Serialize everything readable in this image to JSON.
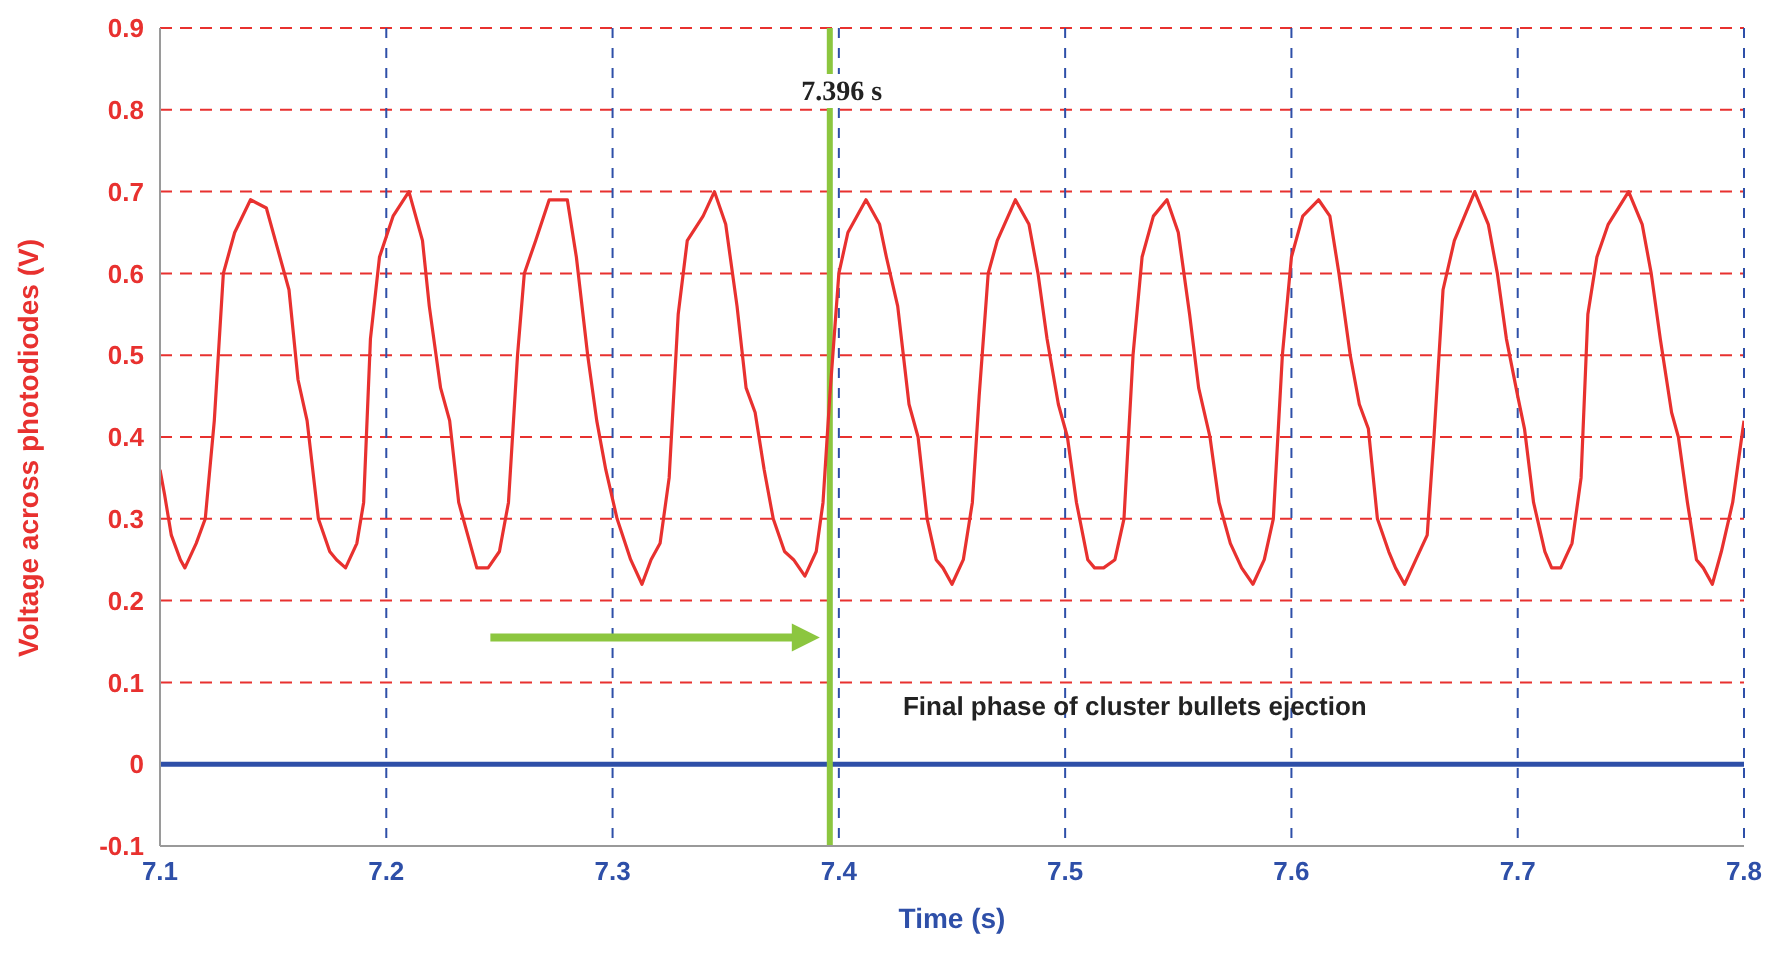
{
  "chart_data": {
    "type": "line",
    "xlabel": "Time (s)",
    "ylabel": "Voltage across photodiodes (V)",
    "series": [
      {
        "color": "#e8312f",
        "x": [
          7.1,
          7.102,
          7.105,
          7.109,
          7.111,
          7.116,
          7.12,
          7.124,
          7.128,
          7.133,
          7.14,
          7.147,
          7.152,
          7.157,
          7.161,
          7.165,
          7.17,
          7.175,
          7.178,
          7.182,
          7.187,
          7.19,
          7.193,
          7.197,
          7.203,
          7.21,
          7.216,
          7.219,
          7.224,
          7.228,
          7.232,
          7.236,
          7.24,
          7.245,
          7.25,
          7.254,
          7.258,
          7.261,
          7.266,
          7.272,
          7.28,
          7.284,
          7.289,
          7.293,
          7.297,
          7.302,
          7.308,
          7.313,
          7.317,
          7.321,
          7.325,
          7.329,
          7.333,
          7.34,
          7.345,
          7.35,
          7.355,
          7.359,
          7.363,
          7.367,
          7.371,
          7.376,
          7.38,
          7.385,
          7.39,
          7.393,
          7.396,
          7.4,
          7.404,
          7.412,
          7.418,
          7.421,
          7.426,
          7.431,
          7.435,
          7.439,
          7.443,
          7.446,
          7.45,
          7.455,
          7.459,
          7.462,
          7.466,
          7.47,
          7.478,
          7.484,
          7.488,
          7.492,
          7.497,
          7.501,
          7.505,
          7.51,
          7.513,
          7.517,
          7.522,
          7.526,
          7.53,
          7.534,
          7.539,
          7.545,
          7.55,
          7.555,
          7.559,
          7.564,
          7.568,
          7.573,
          7.578,
          7.583,
          7.588,
          7.592,
          7.596,
          7.6,
          7.605,
          7.612,
          7.617,
          7.621,
          7.626,
          7.63,
          7.634,
          7.638,
          7.643,
          7.646,
          7.65,
          7.655,
          7.66,
          7.663,
          7.667,
          7.672,
          7.681,
          7.687,
          7.691,
          7.695,
          7.7,
          7.703,
          7.707,
          7.712,
          7.715,
          7.719,
          7.724,
          7.728,
          7.731,
          7.735,
          7.74,
          7.749,
          7.755,
          7.759,
          7.763,
          7.768,
          7.771,
          7.775,
          7.779,
          7.782,
          7.786,
          7.79,
          7.795,
          7.8
        ],
        "values": [
          0.36,
          0.33,
          0.28,
          0.25,
          0.24,
          0.27,
          0.3,
          0.42,
          0.6,
          0.65,
          0.69,
          0.68,
          0.63,
          0.58,
          0.47,
          0.42,
          0.3,
          0.26,
          0.25,
          0.24,
          0.27,
          0.32,
          0.52,
          0.62,
          0.67,
          0.7,
          0.64,
          0.56,
          0.46,
          0.42,
          0.32,
          0.28,
          0.24,
          0.24,
          0.26,
          0.32,
          0.5,
          0.6,
          0.64,
          0.69,
          0.69,
          0.62,
          0.5,
          0.42,
          0.36,
          0.3,
          0.25,
          0.22,
          0.25,
          0.27,
          0.35,
          0.55,
          0.64,
          0.67,
          0.7,
          0.66,
          0.56,
          0.46,
          0.43,
          0.36,
          0.3,
          0.26,
          0.25,
          0.23,
          0.26,
          0.32,
          0.45,
          0.6,
          0.65,
          0.69,
          0.66,
          0.62,
          0.56,
          0.44,
          0.4,
          0.3,
          0.25,
          0.24,
          0.22,
          0.25,
          0.32,
          0.45,
          0.6,
          0.64,
          0.69,
          0.66,
          0.6,
          0.52,
          0.44,
          0.4,
          0.32,
          0.25,
          0.24,
          0.24,
          0.25,
          0.3,
          0.5,
          0.62,
          0.67,
          0.69,
          0.65,
          0.55,
          0.46,
          0.4,
          0.32,
          0.27,
          0.24,
          0.22,
          0.25,
          0.3,
          0.5,
          0.62,
          0.67,
          0.69,
          0.67,
          0.6,
          0.5,
          0.44,
          0.41,
          0.3,
          0.26,
          0.24,
          0.22,
          0.25,
          0.28,
          0.4,
          0.58,
          0.64,
          0.7,
          0.66,
          0.6,
          0.52,
          0.45,
          0.41,
          0.32,
          0.26,
          0.24,
          0.24,
          0.27,
          0.35,
          0.55,
          0.62,
          0.66,
          0.7,
          0.66,
          0.6,
          0.52,
          0.43,
          0.4,
          0.32,
          0.25,
          0.24,
          0.22,
          0.26,
          0.32,
          0.42
        ]
      }
    ],
    "xlim": [
      7.1,
      7.8
    ],
    "xticks": [
      7.1,
      7.2,
      7.3,
      7.4,
      7.5,
      7.6,
      7.7,
      7.8
    ],
    "ylim": [
      -0.1,
      0.9
    ],
    "yticks": [
      -0.1,
      0,
      0.1,
      0.2,
      0.3,
      0.4,
      0.5,
      0.6,
      0.7,
      0.8,
      0.9
    ],
    "grid": true,
    "marker": "none",
    "line_style": "solid",
    "ref_lines": [
      {
        "axis": "y",
        "value": 0,
        "color": "#2e4fa8"
      },
      {
        "axis": "x",
        "value": 7.396,
        "label": "7.396 s",
        "color": "#8cc63f"
      }
    ],
    "annotations": [
      {
        "text": "Final phase of cluster bullets ejection",
        "x": 7.4,
        "y": 0.1
      }
    ]
  }
}
